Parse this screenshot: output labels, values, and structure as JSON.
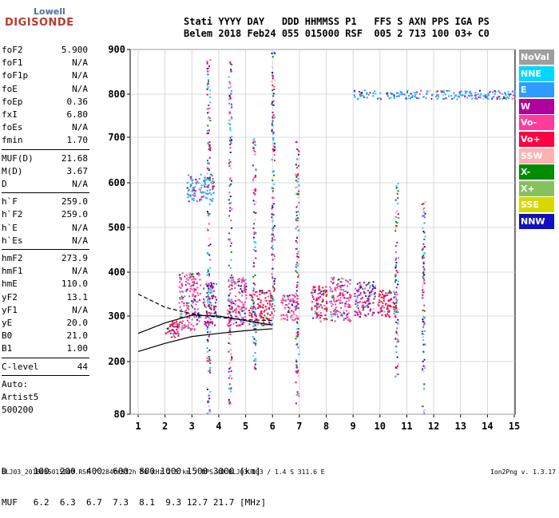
{
  "logo": {
    "line1": "Lowell",
    "line2": "DIGISONDE"
  },
  "header": {
    "line1": "Stati YYYY DAY   DDD HHMMSS P1   FFS S AXN PPS IGA PS",
    "line2": "Belem 2018 Feb24 055 015000 RSF  005 2 713 100 03+ C0"
  },
  "params": [
    {
      "label": "foF2",
      "value": "5.900"
    },
    {
      "label": "foF1",
      "value": "N/A"
    },
    {
      "label": "foF1p",
      "value": "N/A"
    },
    {
      "label": "foE",
      "value": "N/A"
    },
    {
      "label": "foEp",
      "value": "0.36"
    },
    {
      "label": "fxI",
      "value": "6.80"
    },
    {
      "label": "foEs",
      "value": "N/A"
    },
    {
      "label": "fmin",
      "value": "1.70"
    },
    {
      "label": "MUF(D)",
      "value": "21.68"
    },
    {
      "label": "M(D)",
      "value": "3.67"
    },
    {
      "label": "D",
      "value": "N/A"
    },
    {
      "label": "h`F",
      "value": "259.0"
    },
    {
      "label": "h`F2",
      "value": "259.0"
    },
    {
      "label": "h`E",
      "value": "N/A"
    },
    {
      "label": "h`Es",
      "value": "N/A"
    },
    {
      "label": "hmF2",
      "value": "273.9"
    },
    {
      "label": "hmF1",
      "value": "N/A"
    },
    {
      "label": "hmE",
      "value": "110.0"
    },
    {
      "label": "yF2",
      "value": "13.1"
    },
    {
      "label": "yF1",
      "value": "N/A"
    },
    {
      "label": "yE",
      "value": "20.0"
    },
    {
      "label": "B0",
      "value": "21.0"
    },
    {
      "label": "B1",
      "value": "1.00"
    },
    {
      "label": "C-level",
      "value": "44"
    }
  ],
  "auto": {
    "line1": "Auto:",
    "line2": "Artist5",
    "line3": "500200"
  },
  "legend": [
    {
      "label": "NoVal",
      "color": "#9e9e9e"
    },
    {
      "label": "NNE",
      "color": "#00d8ff"
    },
    {
      "label": "E",
      "color": "#2e9cff"
    },
    {
      "label": "W",
      "color": "#b0009e"
    },
    {
      "label": "Vo-",
      "color": "#ff3c9a"
    },
    {
      "label": "Vo+",
      "color": "#ff0040"
    },
    {
      "label": "SSW",
      "color": "#ffb0b0"
    },
    {
      "label": "X-",
      "color": "#008c00"
    },
    {
      "label": "X+",
      "color": "#88c060"
    },
    {
      "label": "SSE",
      "color": "#d8d800"
    },
    {
      "label": "NNW",
      "color": "#1010c0"
    }
  ],
  "muf_table": {
    "d_label": "D",
    "d_values": [
      "100",
      "200",
      "400",
      "600",
      "800",
      "1000",
      "1500",
      "3000"
    ],
    "d_unit": "[km]",
    "muf_label": "MUF",
    "muf_values": [
      "6.2",
      "6.3",
      "6.7",
      "7.3",
      "8.1",
      "9.3",
      "12.7",
      "21.7"
    ],
    "muf_unit": "[MHz]"
  },
  "footer": "BLJ03_2018055015000.RSF / 284fx512h 50 kHz 2.5 km / DPS-4D BLJ03 103 / 1.4 S 311.6 E",
  "version": "Ion2Png v. 1.3.17",
  "chart_data": {
    "type": "scatter",
    "x_ticks": [
      "1",
      "2",
      "3",
      "4",
      "5",
      "6",
      "7",
      "8",
      "9",
      "10",
      "11",
      "12",
      "13",
      "14",
      "15"
    ],
    "y_ticks": [
      "80",
      "200",
      "300",
      "400",
      "500",
      "600",
      "700",
      "800",
      "900"
    ],
    "xlim": [
      1,
      15
    ],
    "y_tick_values": [
      80,
      200,
      300,
      400,
      500,
      600,
      700,
      800,
      900
    ],
    "grid": true,
    "clusters": [
      {
        "x": [
          2.0,
          2.5
        ],
        "y": [
          255,
          290
        ],
        "source": "Vo+"
      },
      {
        "x": [
          2.5,
          3.3
        ],
        "y": [
          270,
          400
        ],
        "source": "Vo-"
      },
      {
        "x": [
          3.4,
          3.9
        ],
        "y": [
          280,
          380
        ],
        "source": "W"
      },
      {
        "x": [
          4.3,
          5.0
        ],
        "y": [
          280,
          390
        ],
        "source": "Vo-"
      },
      {
        "x": [
          5.1,
          6.0
        ],
        "y": [
          280,
          360
        ],
        "source": "Vo+"
      },
      {
        "x": [
          6.3,
          6.9
        ],
        "y": [
          290,
          350
        ],
        "source": "Vo-"
      },
      {
        "x": [
          7.4,
          8.0
        ],
        "y": [
          290,
          370
        ],
        "source": "Vo+"
      },
      {
        "x": [
          8.1,
          8.9
        ],
        "y": [
          290,
          390
        ],
        "source": "Vo-"
      },
      {
        "x": [
          9.0,
          9.8
        ],
        "y": [
          300,
          380
        ],
        "source": "W"
      },
      {
        "x": [
          9.9,
          10.6
        ],
        "y": [
          300,
          360
        ],
        "source": "Vo+"
      },
      {
        "x": [
          2.8,
          3.8
        ],
        "y": [
          560,
          620
        ],
        "source": "E"
      },
      {
        "x": [
          9.0,
          15.0
        ],
        "y": [
          790,
          810
        ],
        "source": "E"
      }
    ],
    "vertical_streaks": [
      {
        "x": 3.6,
        "y": [
          80,
          880
        ]
      },
      {
        "x": 4.4,
        "y": [
          100,
          880
        ]
      },
      {
        "x": 5.3,
        "y": [
          180,
          700
        ]
      },
      {
        "x": 6.0,
        "y": [
          280,
          900
        ]
      },
      {
        "x": 6.9,
        "y": [
          100,
          700
        ]
      },
      {
        "x": 10.6,
        "y": [
          160,
          600
        ]
      },
      {
        "x": 11.6,
        "y": [
          80,
          560
        ]
      }
    ],
    "profile_curves": [
      {
        "name": "solid_upper",
        "x": [
          1.0,
          2.0,
          3.0,
          4.0,
          5.0,
          6.0
        ],
        "y": [
          262,
          285,
          302,
          300,
          290,
          280
        ]
      },
      {
        "name": "solid_lower",
        "x": [
          1.0,
          2.0,
          3.0,
          4.0,
          5.0,
          6.0
        ],
        "y": [
          222,
          240,
          255,
          262,
          268,
          272
        ]
      },
      {
        "name": "dashed",
        "x": [
          1.0,
          2.0,
          3.0,
          4.0,
          5.0,
          6.0
        ],
        "y": [
          350,
          320,
          305,
          297,
          292,
          290
        ]
      }
    ]
  }
}
